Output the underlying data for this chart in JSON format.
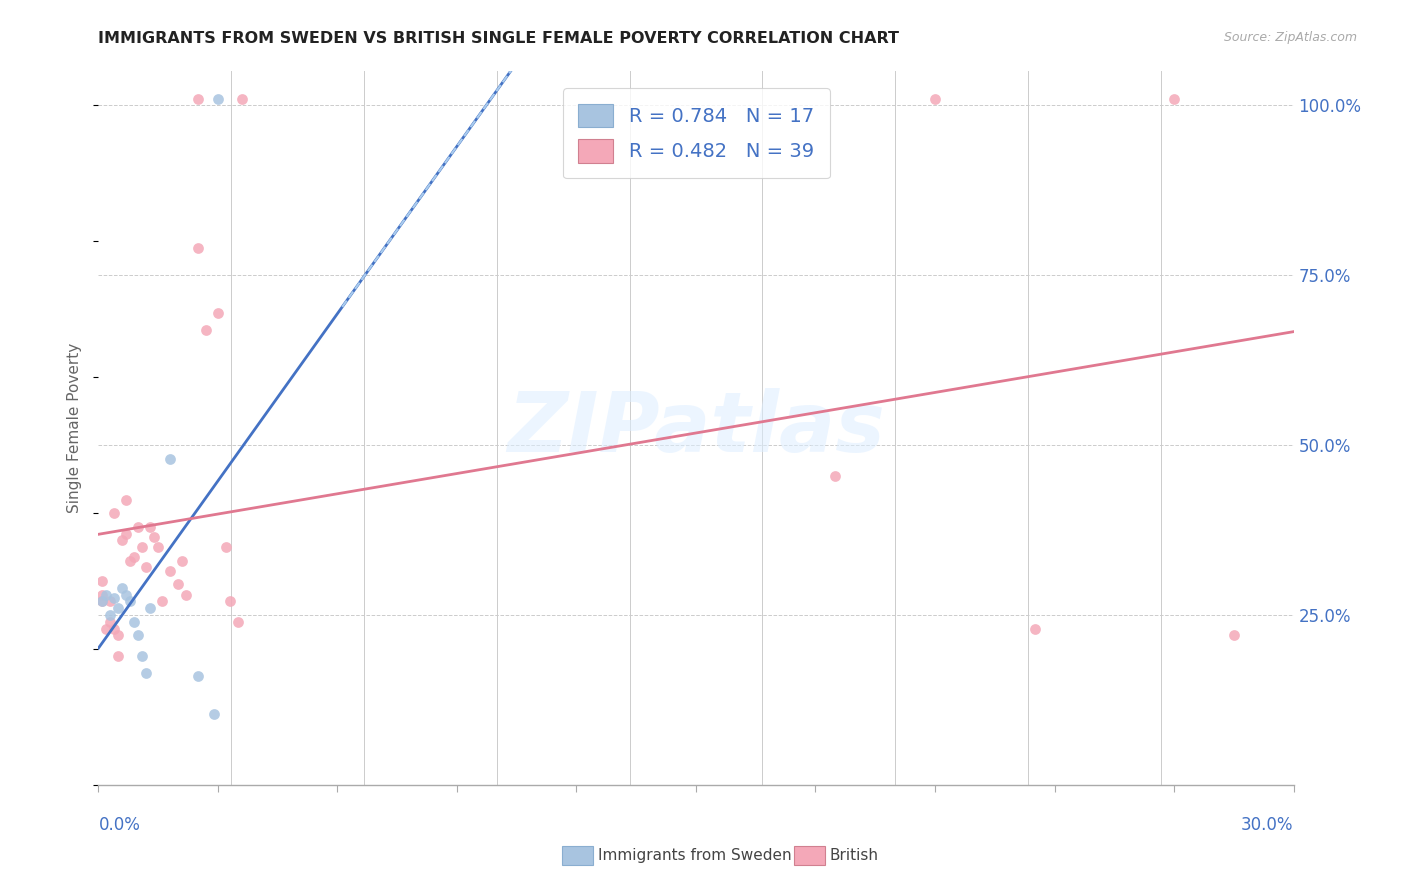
{
  "title": "IMMIGRANTS FROM SWEDEN VS BRITISH SINGLE FEMALE POVERTY CORRELATION CHART",
  "source": "Source: ZipAtlas.com",
  "ylabel": "Single Female Poverty",
  "right_yticks_labels": [
    "100.0%",
    "75.0%",
    "50.0%",
    "25.0%"
  ],
  "right_yticks_vals": [
    1.0,
    0.75,
    0.5,
    0.25
  ],
  "legend_sweden": {
    "R": 0.784,
    "N": 17
  },
  "legend_british": {
    "R": 0.482,
    "N": 39
  },
  "watermark": "ZIPatlas",
  "sweden_x": [
    0.001,
    0.002,
    0.003,
    0.004,
    0.005,
    0.006,
    0.007,
    0.008,
    0.009,
    0.01,
    0.011,
    0.012,
    0.013,
    0.018,
    0.025,
    0.029,
    0.03
  ],
  "sweden_y": [
    0.27,
    0.28,
    0.25,
    0.275,
    0.26,
    0.29,
    0.28,
    0.27,
    0.24,
    0.22,
    0.19,
    0.165,
    0.26,
    0.48,
    0.16,
    0.105,
    1.01
  ],
  "british_x": [
    0.001,
    0.001,
    0.001,
    0.002,
    0.003,
    0.003,
    0.004,
    0.004,
    0.005,
    0.005,
    0.006,
    0.007,
    0.007,
    0.008,
    0.009,
    0.01,
    0.011,
    0.012,
    0.013,
    0.014,
    0.015,
    0.016,
    0.018,
    0.02,
    0.021,
    0.022,
    0.025,
    0.025,
    0.027,
    0.03,
    0.032,
    0.033,
    0.035,
    0.036,
    0.185,
    0.21,
    0.235,
    0.27,
    0.285
  ],
  "british_y": [
    0.3,
    0.28,
    0.27,
    0.23,
    0.27,
    0.24,
    0.4,
    0.23,
    0.22,
    0.19,
    0.36,
    0.37,
    0.42,
    0.33,
    0.335,
    0.38,
    0.35,
    0.32,
    0.38,
    0.365,
    0.35,
    0.27,
    0.315,
    0.295,
    0.33,
    0.28,
    1.01,
    0.79,
    0.67,
    0.695,
    0.35,
    0.27,
    0.24,
    1.01,
    0.455,
    1.01,
    0.23,
    1.01,
    0.22
  ],
  "sweden_line_color": "#4472c4",
  "british_line_color": "#e07890",
  "sweden_dot_color": "#a8c4e0",
  "british_dot_color": "#f4a8b8",
  "dot_size": 60,
  "dot_alpha": 0.85,
  "background_color": "#ffffff",
  "grid_color": "#cccccc",
  "title_color": "#222222",
  "axis_label_color": "#4472c4",
  "legend_label_color": "#4472c4",
  "xlim": [
    0.0,
    0.3
  ],
  "ylim": [
    0.0,
    1.05
  ]
}
